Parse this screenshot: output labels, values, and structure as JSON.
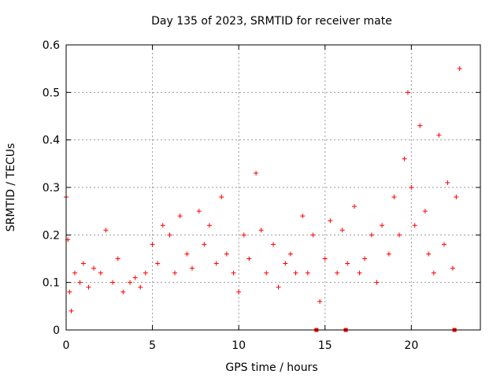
{
  "chart_data": {
    "type": "scatter",
    "title": "Day 135 of 2023, SRMTID for receiver mate",
    "xlabel": "GPS time / hours",
    "ylabel": "SRMTID / TECUs",
    "xlim": [
      0,
      24
    ],
    "ylim": [
      0,
      0.6
    ],
    "xticks": [
      0,
      5,
      10,
      15,
      20
    ],
    "yticks": [
      0,
      0.1,
      0.2,
      0.3,
      0.4,
      0.5,
      0.6
    ],
    "grid": true,
    "series": [
      {
        "name": "SRMTID",
        "color": "#ff0000",
        "marker": "+",
        "points_note": "approximate sample of the dense point cloud",
        "x": [
          0.0,
          0.1,
          0.2,
          0.3,
          0.5,
          0.8,
          1.0,
          1.3,
          1.6,
          2.0,
          2.3,
          2.7,
          3.0,
          3.3,
          3.7,
          4.0,
          4.3,
          4.6,
          5.0,
          5.3,
          5.6,
          6.0,
          6.3,
          6.6,
          7.0,
          7.3,
          7.7,
          8.0,
          8.3,
          8.7,
          9.0,
          9.3,
          9.7,
          10.0,
          10.3,
          10.6,
          11.0,
          11.3,
          11.6,
          12.0,
          12.3,
          12.7,
          13.0,
          13.3,
          13.7,
          14.0,
          14.3,
          14.7,
          15.0,
          15.3,
          15.7,
          16.0,
          16.3,
          16.7,
          17.0,
          17.3,
          17.7,
          18.0,
          18.3,
          18.7,
          19.0,
          19.3,
          19.6,
          19.8,
          20.0,
          20.2,
          20.5,
          20.8,
          21.0,
          21.3,
          21.6,
          21.9,
          22.1,
          22.4,
          22.6,
          22.8
        ],
        "y": [
          0.28,
          0.19,
          0.08,
          0.04,
          0.12,
          0.1,
          0.14,
          0.09,
          0.13,
          0.12,
          0.21,
          0.1,
          0.15,
          0.08,
          0.1,
          0.11,
          0.09,
          0.12,
          0.18,
          0.14,
          0.22,
          0.2,
          0.12,
          0.24,
          0.16,
          0.13,
          0.25,
          0.18,
          0.22,
          0.14,
          0.28,
          0.16,
          0.12,
          0.08,
          0.2,
          0.15,
          0.33,
          0.21,
          0.12,
          0.18,
          0.09,
          0.14,
          0.16,
          0.12,
          0.24,
          0.12,
          0.2,
          0.06,
          0.15,
          0.23,
          0.12,
          0.21,
          0.14,
          0.26,
          0.12,
          0.15,
          0.2,
          0.1,
          0.22,
          0.16,
          0.28,
          0.2,
          0.36,
          0.5,
          0.3,
          0.22,
          0.43,
          0.25,
          0.16,
          0.12,
          0.41,
          0.18,
          0.31,
          0.13,
          0.28,
          0.55
        ]
      }
    ],
    "zero_markers_x": [
      14.5,
      16.2,
      22.5
    ]
  }
}
